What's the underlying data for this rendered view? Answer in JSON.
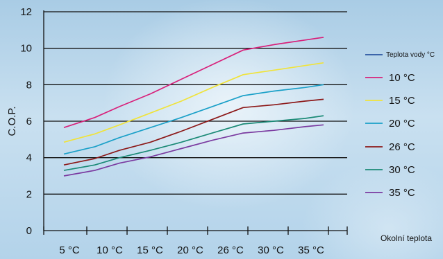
{
  "chart_data": {
    "type": "line",
    "xlabel": "Okolní teplota",
    "ylabel": "C.O.P.",
    "categories": [
      "5 °C",
      "10 °C",
      "15 °C",
      "20 °C",
      "26 °C",
      "30 °C",
      "35 °C"
    ],
    "ylim": [
      0,
      12
    ],
    "yticks": [
      "0",
      "2",
      "4",
      "6",
      "8",
      "10",
      "12"
    ],
    "grid": "horizontal",
    "legend_placement": "right",
    "legend_header": "Teplota vody °C",
    "legend_header_color": "#2a55a0",
    "series": [
      {
        "name": "10 °C",
        "color": "#d8207a",
        "x": [
          -7,
          -2,
          2,
          7,
          12,
          17,
          22,
          27,
          32,
          35
        ],
        "y": [
          5.65,
          6.2,
          6.8,
          7.5,
          8.3,
          9.1,
          9.9,
          10.2,
          10.45,
          10.6
        ]
      },
      {
        "name": "15 °C",
        "color": "#f0e33a",
        "x": [
          -7,
          -2,
          2,
          7,
          12,
          17,
          22,
          27,
          32,
          35
        ],
        "y": [
          4.85,
          5.3,
          5.8,
          6.45,
          7.1,
          7.85,
          8.55,
          8.8,
          9.05,
          9.2
        ]
      },
      {
        "name": "20 °C",
        "color": "#1aa0c8",
        "x": [
          -7,
          -2,
          2,
          7,
          12,
          17,
          22,
          27,
          32,
          35
        ],
        "y": [
          4.2,
          4.6,
          5.1,
          5.65,
          6.2,
          6.8,
          7.4,
          7.65,
          7.85,
          8.0
        ]
      },
      {
        "name": "26 °C",
        "color": "#8c1818",
        "x": [
          -7,
          -2,
          2,
          7,
          12,
          17,
          22,
          27,
          32,
          35
        ],
        "y": [
          3.6,
          3.95,
          4.4,
          4.85,
          5.45,
          6.1,
          6.75,
          6.9,
          7.1,
          7.2
        ]
      },
      {
        "name": "30 °C",
        "color": "#1a8a76",
        "x": [
          -7,
          -2,
          2,
          7,
          12,
          17,
          22,
          27,
          32,
          35
        ],
        "y": [
          3.3,
          3.6,
          4.0,
          4.4,
          4.85,
          5.35,
          5.85,
          6.0,
          6.15,
          6.3
        ]
      },
      {
        "name": "35 °C",
        "color": "#7a3aa0",
        "x": [
          -7,
          -2,
          2,
          7,
          12,
          17,
          22,
          27,
          32,
          35
        ],
        "y": [
          3.0,
          3.3,
          3.7,
          4.05,
          4.5,
          4.95,
          5.35,
          5.5,
          5.7,
          5.8
        ]
      }
    ]
  }
}
